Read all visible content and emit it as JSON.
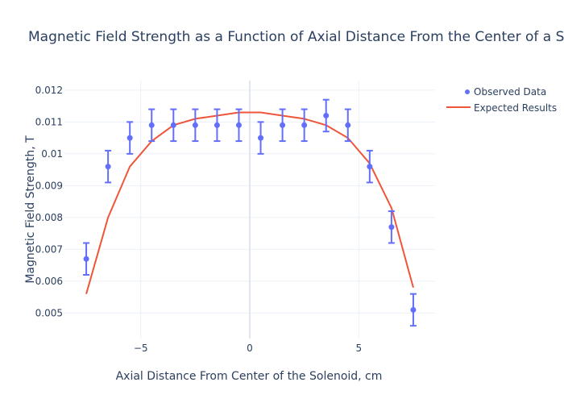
{
  "chart_data": {
    "type": "scatter",
    "title": "Magnetic Field Strength as a Function of Axial Distance From the Center of a Solenoid",
    "xlabel": "Axial Distance From Center of the Solenoid, cm",
    "ylabel": "Magnetic Field Strength, T",
    "xlim": [
      -8.5,
      8.5
    ],
    "ylim": [
      0.0042,
      0.0123
    ],
    "x_ticks": [
      -5,
      0,
      5
    ],
    "x_tick_labels": [
      "−5",
      "0",
      "5"
    ],
    "y_ticks": [
      0.005,
      0.006,
      0.007,
      0.008,
      0.009,
      0.01,
      0.011,
      0.012
    ],
    "y_tick_labels": [
      "0.005",
      "0.006",
      "0.007",
      "0.008",
      "0.009",
      "0.01",
      "0.011",
      "0.012"
    ],
    "grid": true,
    "legend_position": "top-right",
    "series": [
      {
        "name": "Observed Data",
        "mode": "markers",
        "color": "#636efa",
        "x": [
          -7.5,
          -6.5,
          -5.5,
          -4.5,
          -3.5,
          -2.5,
          -1.5,
          -0.5,
          0.5,
          1.5,
          2.5,
          3.5,
          4.5,
          5.5,
          6.5,
          7.5
        ],
        "y": [
          0.0067,
          0.0096,
          0.0105,
          0.0109,
          0.0109,
          0.0109,
          0.0109,
          0.0109,
          0.0105,
          0.0109,
          0.0109,
          0.0112,
          0.0109,
          0.0096,
          0.0077,
          0.0051
        ],
        "error": 0.0005
      },
      {
        "name": "Expected Results",
        "mode": "lines",
        "color": "#ef553b",
        "x": [
          -7.5,
          -6.5,
          -5.5,
          -4.5,
          -3.5,
          -2.5,
          -1.5,
          -0.5,
          0.5,
          1.5,
          2.5,
          3.5,
          4.5,
          5.5,
          6.5,
          7.5
        ],
        "y": [
          0.0056,
          0.008,
          0.0096,
          0.0104,
          0.0109,
          0.0111,
          0.0112,
          0.0113,
          0.0113,
          0.0112,
          0.0111,
          0.0109,
          0.0105,
          0.0097,
          0.0083,
          0.0058
        ]
      }
    ]
  }
}
